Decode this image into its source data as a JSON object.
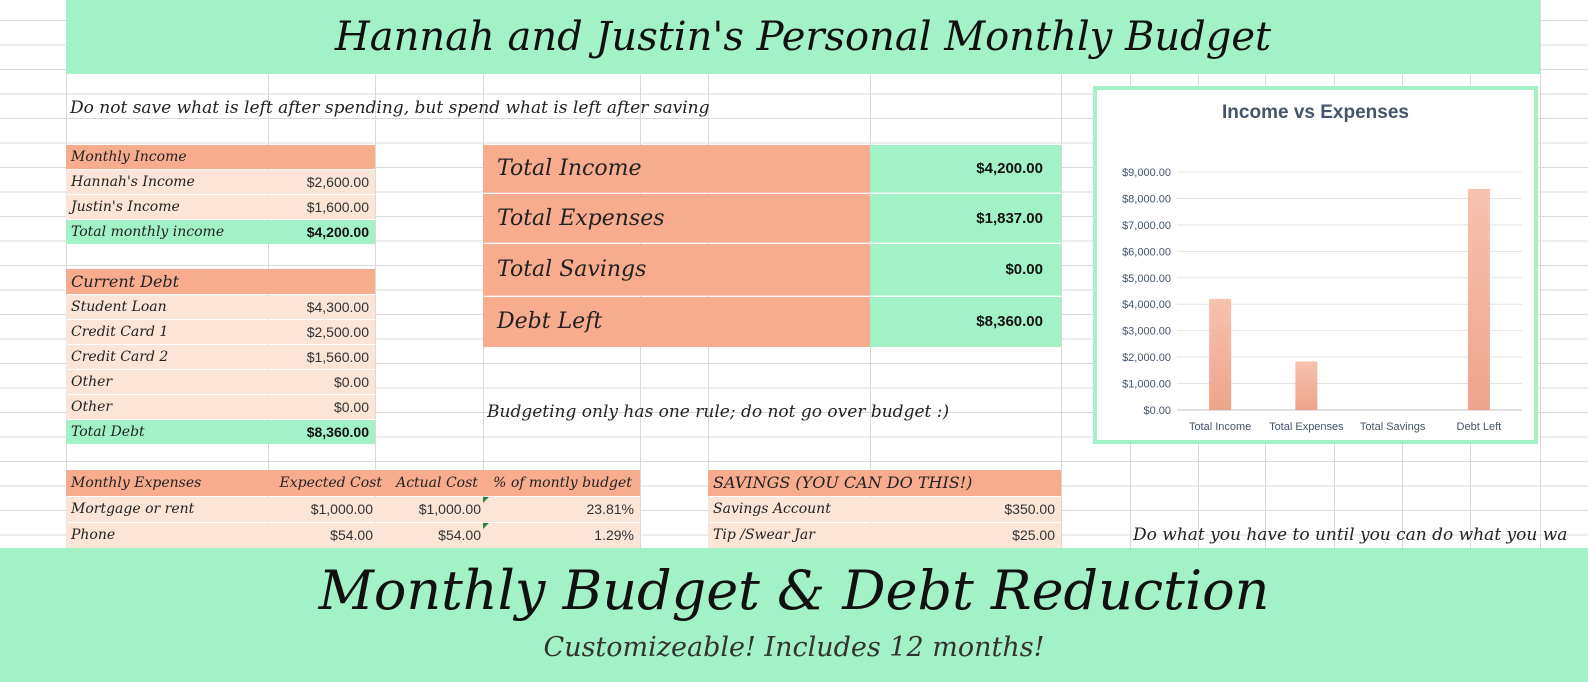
{
  "header": {
    "title": "Hannah and Justin's Personal Monthly Budget"
  },
  "quote_top": "Do not save what is left after spending, but spend what is left after saving",
  "income": {
    "header": "Monthly Income",
    "rows": [
      {
        "label": "Hannah's Income",
        "value": "$2,600.00"
      },
      {
        "label": "Justin's Income",
        "value": "$1,600.00"
      }
    ],
    "total_label": "Total monthly income",
    "total_value": "$4,200.00"
  },
  "debt": {
    "header": "Current Debt",
    "rows": [
      {
        "label": "Student Loan",
        "value": "$4,300.00"
      },
      {
        "label": "Credit Card 1",
        "value": "$2,500.00"
      },
      {
        "label": "Credit Card 2",
        "value": "$1,560.00"
      },
      {
        "label": "Other",
        "value": "$0.00"
      },
      {
        "label": "Other",
        "value": "$0.00"
      }
    ],
    "total_label": "Total Debt",
    "total_value": "$8,360.00"
  },
  "summary": [
    {
      "label": "Total Income",
      "value": "$4,200.00"
    },
    {
      "label": "Total Expenses",
      "value": "$1,837.00"
    },
    {
      "label": "Total Savings",
      "value": "$0.00"
    },
    {
      "label": "Debt Left",
      "value": "$8,360.00"
    }
  ],
  "quote_mid": "Budgeting only has one rule; do not go over budget :)",
  "expenses": {
    "headers": [
      "Monthly Expenses",
      "Expected Cost",
      "Actual Cost",
      "% of montly budget"
    ],
    "rows": [
      {
        "label": "Mortgage or rent",
        "expected": "$1,000.00",
        "actual": "$1,000.00",
        "pct": "23.81%"
      },
      {
        "label": "Phone",
        "expected": "$54.00",
        "actual": "$54.00",
        "pct": "1.29%"
      }
    ]
  },
  "savings": {
    "header": "SAVINGS (YOU CAN DO THIS!)",
    "rows": [
      {
        "label": "Savings Account",
        "value": "$350.00"
      },
      {
        "label": "Tip /Swear Jar",
        "value": "$25.00"
      }
    ]
  },
  "quote_right": "Do what you have to until you can do what you wa",
  "banner": {
    "title": "Monthly Budget & Debt Reduction",
    "subtitle": "Customizeable! Includes 12 months!"
  },
  "colors": {
    "mint": "#a3f2c7",
    "salmon": "#f8ac8e",
    "peach": "#fce4d6",
    "bar": "#f4b6a0"
  },
  "chart_data": {
    "type": "bar",
    "title": "Income vs Expenses",
    "categories": [
      "Total Income",
      "Total Expenses",
      "Total Savings",
      "Debt Left"
    ],
    "values": [
      4200,
      1837,
      0,
      8360
    ],
    "ylim": [
      0,
      9000
    ],
    "yticks": [
      "$0.00",
      "$1,000.00",
      "$2,000.00",
      "$3,000.00",
      "$4,000.00",
      "$5,000.00",
      "$6,000.00",
      "$7,000.00",
      "$8,000.00",
      "$9,000.00"
    ],
    "grid": true
  }
}
